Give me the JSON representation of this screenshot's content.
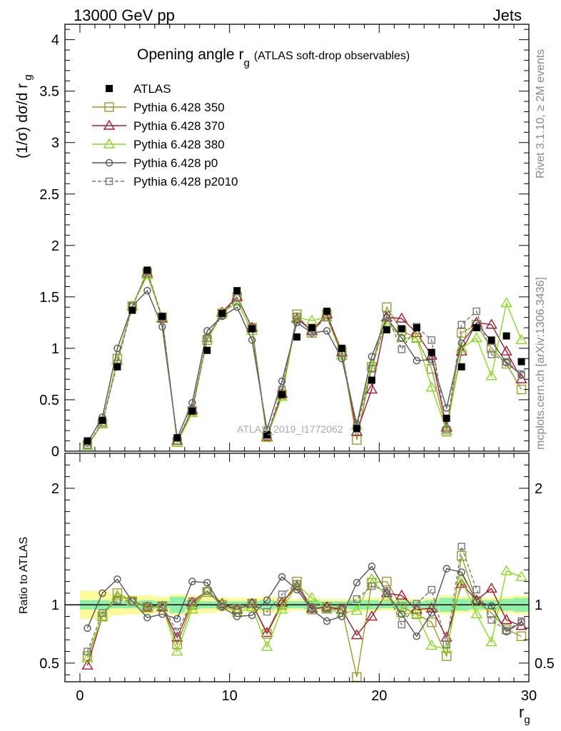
{
  "header": {
    "left": "13000 GeV pp",
    "right": "Jets"
  },
  "side_text": {
    "rivet": "Rivet 3.1.10, ≥ 2M events",
    "mcplots": "mcplots.cern.ch [arXiv:1306.3436]"
  },
  "watermark": "ATLAS_2019_I1772062",
  "chart_data": [
    {
      "type": "line",
      "title_main": "Opening angle r",
      "title_sub": "g",
      "title_extra": "(ATLAS soft-drop observables)",
      "ylabel": "(1/σ) dσ/d r",
      "ylabel_sub": "g",
      "xlim": [
        -1,
        30
      ],
      "ylim": [
        0,
        4.15
      ],
      "yticks": [
        0,
        0.5,
        1,
        1.5,
        2,
        2.5,
        3,
        3.5,
        4
      ],
      "ytick_labels": [
        "0",
        "0.5",
        "1",
        "1.5",
        "2",
        "2.5",
        "3",
        "3.5",
        "4"
      ],
      "x": [
        0.5,
        1.5,
        2.5,
        3.5,
        4.5,
        5.5,
        6.5,
        7.5,
        8.5,
        9.5,
        10.5,
        11.5,
        12.5,
        13.5,
        14.5,
        15.5,
        16.5,
        17.5,
        18.5,
        19.5,
        20.5,
        21.5,
        22.5,
        23.5,
        24.5,
        25.5,
        26.5,
        27.5,
        28.5,
        29.5
      ],
      "data": {
        "name": "ATLAS",
        "values": [
          0.1,
          0.3,
          0.82,
          1.37,
          1.76,
          1.31,
          0.13,
          0.39,
          0.98,
          1.34,
          1.56,
          1.19,
          0.16,
          0.55,
          1.11,
          1.2,
          1.36,
          1.0,
          0.22,
          0.69,
          1.18,
          1.19,
          1.2,
          0.96,
          0.32,
          0.82,
          1.2,
          1.08,
          1.12,
          0.87
        ]
      },
      "series": [
        {
          "name": "Pythia 6.428 350",
          "color": "#9a9a30",
          "marker": "square-open",
          "dashed": false,
          "values": [
            0.06,
            0.27,
            0.9,
            1.41,
            1.73,
            1.3,
            0.09,
            0.39,
            1.08,
            1.34,
            1.5,
            1.2,
            0.14,
            0.55,
            1.33,
            1.15,
            1.33,
            0.97,
            0.11,
            0.82,
            1.4,
            1.17,
            1.1,
            0.8,
            0.19,
            1.15,
            1.23,
            1.0,
            0.85,
            0.6
          ]
        },
        {
          "name": "Pythia 6.428 370",
          "color": "#a01d2e",
          "marker": "triangle-open",
          "dashed": false,
          "values": [
            0.05,
            0.27,
            0.88,
            1.41,
            1.73,
            1.29,
            0.1,
            0.4,
            1.1,
            1.35,
            1.5,
            1.2,
            0.14,
            0.56,
            1.29,
            1.17,
            1.33,
            0.96,
            0.19,
            0.6,
            1.3,
            1.29,
            1.15,
            0.93,
            0.23,
            0.97,
            1.25,
            1.23,
            0.97,
            0.7
          ]
        },
        {
          "name": "Pythia 6.428 380",
          "color": "#8ed62a",
          "marker": "triangle-open",
          "dashed": false,
          "values": [
            0.05,
            0.27,
            0.88,
            1.41,
            1.71,
            1.3,
            0.08,
            0.37,
            1.1,
            1.34,
            1.45,
            1.17,
            0.13,
            0.53,
            1.3,
            1.27,
            1.3,
            0.93,
            0.25,
            0.84,
            1.26,
            1.1,
            1.1,
            0.62,
            0.2,
            1.0,
            1.1,
            0.73,
            1.44,
            1.08
          ]
        },
        {
          "name": "Pythia 6.428 p0",
          "color": "#555555",
          "marker": "circle-open",
          "dashed": false,
          "values": [
            0.08,
            0.33,
            1.0,
            1.41,
            1.56,
            1.21,
            0.13,
            0.47,
            1.17,
            1.31,
            1.4,
            1.08,
            0.21,
            0.68,
            1.25,
            1.15,
            1.17,
            0.9,
            0.26,
            0.92,
            1.3,
            1.1,
            0.88,
            0.89,
            0.42,
            1.05,
            1.24,
            1.07,
            0.86,
            0.74
          ]
        },
        {
          "name": "Pythia 6.428 p2010",
          "color": "#777777",
          "marker": "square-open-small",
          "dashed": true,
          "values": [
            0.06,
            0.28,
            0.85,
            1.41,
            1.75,
            1.3,
            0.1,
            0.4,
            1.1,
            1.32,
            1.49,
            1.2,
            0.15,
            0.6,
            1.31,
            1.17,
            1.3,
            0.96,
            0.23,
            0.8,
            1.32,
            0.99,
            1.21,
            1.08,
            0.21,
            1.23,
            1.36,
            0.94,
            0.87,
            0.75
          ]
        }
      ],
      "legend": [
        {
          "label": "ATLAS"
        },
        {
          "label": "Pythia 6.428 350"
        },
        {
          "label": "Pythia 6.428 370"
        },
        {
          "label": "Pythia 6.428 380"
        },
        {
          "label": "Pythia 6.428 p0"
        },
        {
          "label": "Pythia 6.428 p2010"
        }
      ],
      "legend_position": "top-left"
    },
    {
      "type": "line",
      "ylabel": "Ratio to ATLAS",
      "xlabel": "r",
      "xlabel_sub": "g",
      "xlim": [
        -1,
        30
      ],
      "ylim": [
        0.34,
        2.3
      ],
      "xticks": [
        0,
        10,
        20,
        30
      ],
      "xtick_labels": [
        "0",
        "10",
        "20",
        "30"
      ],
      "yticks": [
        0.5,
        1,
        2
      ],
      "ytick_labels": [
        "0.5",
        "1",
        "2"
      ],
      "band_inner": [
        0.04,
        0.04,
        0.03,
        0.03,
        0.04,
        0.03,
        0.07,
        0.04,
        0.03,
        0.03,
        0.03,
        0.03,
        0.04,
        0.03,
        0.03,
        0.04,
        0.03,
        0.03,
        0.04,
        0.04,
        0.03,
        0.04,
        0.03,
        0.04,
        0.06,
        0.05,
        0.04,
        0.04,
        0.05,
        0.06
      ],
      "band_outer": [
        0.12,
        0.12,
        0.09,
        0.08,
        0.08,
        0.07,
        0.09,
        0.08,
        0.07,
        0.06,
        0.06,
        0.06,
        0.07,
        0.06,
        0.05,
        0.06,
        0.05,
        0.05,
        0.06,
        0.06,
        0.05,
        0.06,
        0.05,
        0.06,
        0.08,
        0.07,
        0.06,
        0.06,
        0.07,
        0.08
      ],
      "series": [
        {
          "name": "Pythia 6.428 350",
          "values": [
            0.56,
            0.9,
            1.1,
            1.03,
            0.98,
            0.99,
            0.66,
            1.0,
            1.11,
            1.0,
            0.96,
            1.01,
            0.75,
            1.0,
            1.2,
            0.96,
            0.98,
            0.97,
            0.38,
            1.19,
            1.2,
            0.98,
            0.92,
            0.85,
            0.56,
            1.42,
            1.03,
            0.93,
            0.79,
            0.73
          ]
        },
        {
          "name": "Pythia 6.428 370",
          "values": [
            0.48,
            0.9,
            1.08,
            1.03,
            0.98,
            0.98,
            0.72,
            1.02,
            1.12,
            1.01,
            0.96,
            1.01,
            0.76,
            1.02,
            1.16,
            0.97,
            0.98,
            0.96,
            0.74,
            0.9,
            1.1,
            1.08,
            0.96,
            0.97,
            0.72,
            1.18,
            1.04,
            1.14,
            0.87,
            0.82
          ]
        },
        {
          "name": "Pythia 6.428 380",
          "values": [
            0.54,
            0.9,
            1.08,
            1.03,
            0.97,
            0.99,
            0.6,
            0.96,
            1.12,
            1.0,
            0.93,
            0.98,
            0.64,
            0.96,
            1.17,
            1.06,
            0.96,
            0.93,
            0.95,
            1.22,
            1.07,
            0.93,
            0.92,
            0.65,
            0.62,
            1.22,
            0.92,
            0.68,
            1.29,
            1.24
          ]
        },
        {
          "name": "Pythia 6.428 p0",
          "values": [
            0.8,
            1.1,
            1.22,
            1.03,
            0.89,
            0.92,
            0.88,
            1.2,
            1.19,
            0.98,
            0.9,
            0.91,
            1.04,
            1.24,
            1.13,
            0.96,
            0.86,
            0.9,
            1.19,
            1.33,
            1.1,
            0.92,
            0.73,
            0.93,
            1.31,
            1.28,
            1.03,
            0.99,
            0.77,
            0.85
          ]
        },
        {
          "name": "Pythia 6.428 p2010",
          "values": [
            0.6,
            0.93,
            1.04,
            1.03,
            0.99,
            0.99,
            0.77,
            1.03,
            1.12,
            0.99,
            0.96,
            1.01,
            0.94,
            1.09,
            1.18,
            0.98,
            0.96,
            0.96,
            1.05,
            1.16,
            1.12,
            0.83,
            1.01,
            1.13,
            0.66,
            1.5,
            1.13,
            0.87,
            0.78,
            0.86
          ]
        }
      ]
    }
  ]
}
